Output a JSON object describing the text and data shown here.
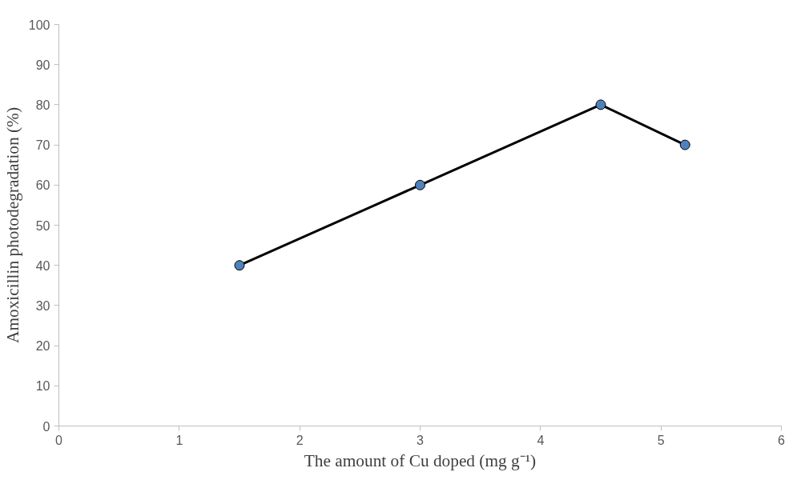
{
  "chart_data": {
    "type": "line",
    "xlabel": "The amount of Cu doped (mg g⁻¹)",
    "ylabel": "Amoxicillin photodegradation (%)",
    "x": [
      1.5,
      3,
      4.5,
      5.2
    ],
    "series": [
      {
        "color": "#000000",
        "values": [
          40,
          60,
          80,
          70
        ]
      }
    ],
    "marker": "circle",
    "line_style": "solid",
    "grid": false,
    "xlim": [
      0,
      6
    ],
    "xticks": [
      0,
      1,
      2,
      3,
      4,
      5,
      6
    ],
    "ylim": [
      0,
      100
    ],
    "yticks": [
      0,
      10,
      20,
      30,
      40,
      50,
      60,
      70,
      80,
      90,
      100
    ]
  }
}
